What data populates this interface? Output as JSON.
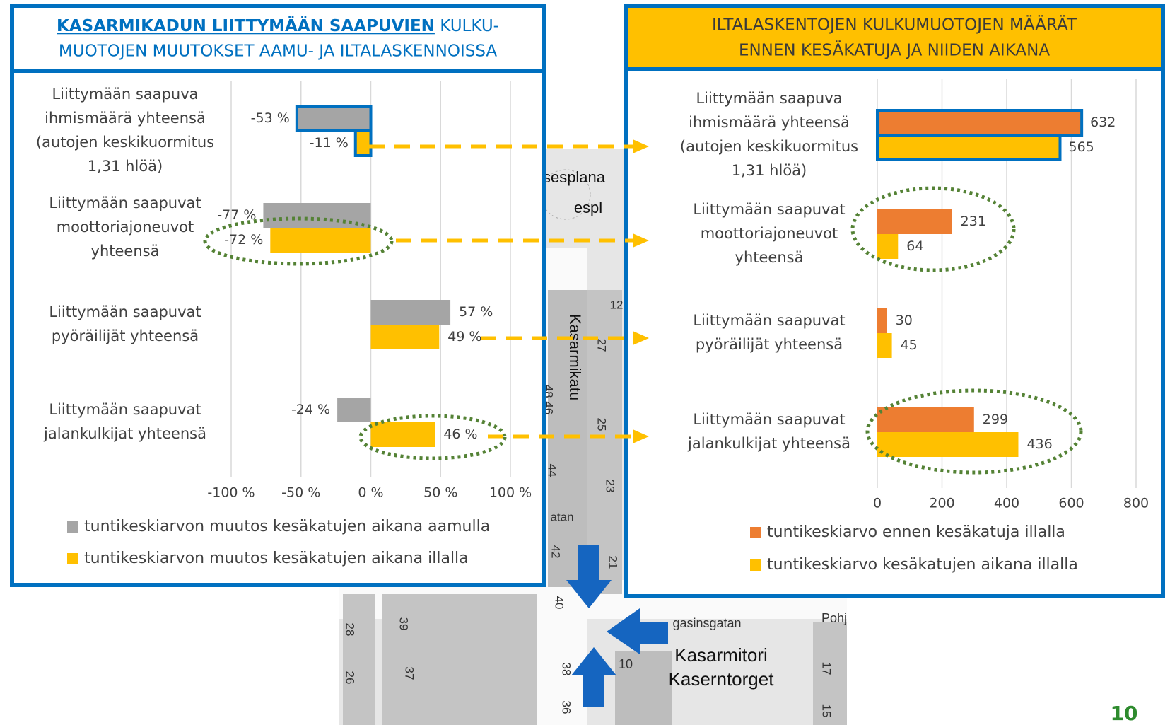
{
  "chart_data": [
    {
      "type": "bar",
      "orientation": "horizontal",
      "title": [
        "KASARMIKADUN LIITTYMÄÄN SAAPUVIEN",
        "KULKU-",
        "MUOTOJEN MUUTOKSET AAMU- JA ILTALASKENNOISSA"
      ],
      "categories": [
        [
          "Liittymään saapuva",
          "ihmismäärä yhteensä",
          "(autojen keskikuormitus",
          "1,31 hlöä)"
        ],
        [
          "Liittymään saapuvat",
          "moottoriajoneuvot",
          "yhteensä"
        ],
        [
          "Liittymään saapuvat",
          "pyöräilijät yhteensä"
        ],
        [
          "Liittymään saapuvat",
          "jalankulkijat yhteensä"
        ]
      ],
      "series": [
        {
          "name": "tuntikeskiarvon muutos kesäkatujen aikana aamulla",
          "color": "#A5A5A5",
          "values": [
            -53,
            -77,
            57,
            -24
          ],
          "value_labels": [
            "-53 %",
            "-77 %",
            "57 %",
            "-24 %"
          ]
        },
        {
          "name": "tuntikeskiarvon muutos kesäkatujen aikana illalla",
          "color": "#FFC000",
          "values": [
            -11,
            -72,
            49,
            46
          ],
          "value_labels": [
            "-11 %",
            "-72 %",
            "49 %",
            "46 %"
          ]
        }
      ],
      "xlim": [
        -100,
        100
      ],
      "xticks": [
        {
          "value": -100,
          "label": "-100 %"
        },
        {
          "value": -50,
          "label": "-50 %"
        },
        {
          "value": 0,
          "label": "0 %"
        },
        {
          "value": 50,
          "label": "50 %"
        },
        {
          "value": 100,
          "label": "100 %"
        }
      ],
      "grid": true,
      "legend": "bottom"
    },
    {
      "type": "bar",
      "orientation": "horizontal",
      "title": [
        "ILTALASKENTOJEN KULKUMUOTOJEN MÄÄRÄT",
        "ENNEN KESÄKATUJA JA NIIDEN AIKANA"
      ],
      "categories": [
        [
          "Liittymään saapuva",
          "ihmismäärä yhteensä",
          "(autojen keskikuormitus",
          "1,31 hlöä)"
        ],
        [
          "Liittymään saapuvat",
          "moottoriajoneuvot",
          "yhteensä"
        ],
        [
          "Liittymään saapuvat",
          "pyöräilijät yhteensä"
        ],
        [
          "Liittymään saapuvat",
          "jalankulkijat yhteensä"
        ]
      ],
      "series": [
        {
          "name": "tuntikeskiarvo ennen kesäkatuja illalla",
          "color": "#ED7D31",
          "values": [
            632,
            231,
            30,
            299
          ]
        },
        {
          "name": "tuntikeskiarvo kesäkatujen aikana illalla",
          "color": "#FFC000",
          "values": [
            565,
            64,
            45,
            436
          ]
        }
      ],
      "xlim": [
        0,
        800
      ],
      "xticks": [
        0,
        200,
        400,
        600,
        800
      ],
      "grid": true,
      "legend": "bottom"
    }
  ],
  "map": {
    "labels": [
      "sesplana",
      "espl",
      "Kasarmikatu",
      "12",
      "27",
      "25",
      "23",
      "21",
      "48 46",
      "44",
      "atan",
      "42",
      "40",
      "38",
      "36",
      "39",
      "37",
      "28",
      "26",
      "gasinsgatan",
      "Pohj",
      "10",
      "Kasarmitori",
      "Kaserntorget",
      "17",
      "15"
    ]
  },
  "page_number": "10"
}
